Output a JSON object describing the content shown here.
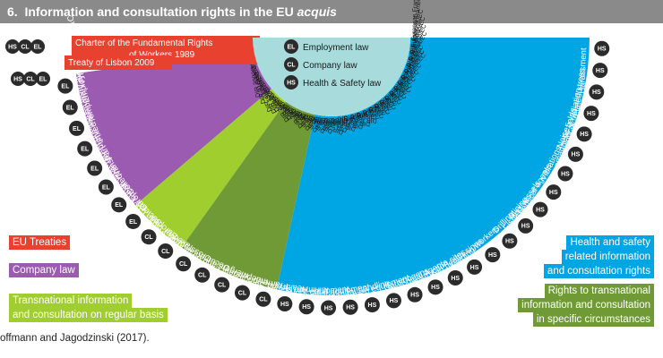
{
  "title": {
    "number": "6.",
    "text": "Information and consultation rights in the EU",
    "emphasis": "acquis"
  },
  "colors": {
    "eu_treaties": "#e8412f",
    "company_law": "#9b5bb0",
    "transnational": "#9fce2e",
    "rights_circumstances": "#6f9a35",
    "health_safety": "#00a5e3",
    "center": "#a8dcdc",
    "circle": "#2b2b2b"
  },
  "center_legend": [
    {
      "code": "EL",
      "label": "Employment law"
    },
    {
      "code": "CL",
      "label": "Company law"
    },
    {
      "code": "HS",
      "label": "Health & Safety law"
    }
  ],
  "left_legend": [
    {
      "label": "EU Treaties",
      "color_key": "eu_treaties"
    },
    {
      "label": "Company law",
      "color_key": "company_law"
    },
    {
      "label": "Transnational information",
      "color_key": "transnational"
    },
    {
      "label": "and consultation on regular basis",
      "color_key": "transnational"
    }
  ],
  "right_legend": [
    {
      "label": "Health and safety",
      "color_key": "health_safety"
    },
    {
      "label": "related information",
      "color_key": "health_safety"
    },
    {
      "label": "and consultation rights",
      "color_key": "health_safety"
    },
    {
      "label": "Rights to transnational",
      "color_key": "rights_circumstances"
    },
    {
      "label": "information  and consultation",
      "color_key": "rights_circumstances"
    },
    {
      "label": "in specific circumstances",
      "color_key": "rights_circumstances"
    }
  ],
  "treaties": [
    {
      "line1": "Charter of the Fundamental Rights",
      "line2": "of Workers 1989",
      "badges": [
        "HS",
        "CL",
        "EL"
      ]
    },
    {
      "line1": "Treaty of Lisbon 2009",
      "line2": "",
      "badges": [
        "HS",
        "CL",
        "EL"
      ]
    }
  ],
  "rays": [
    {
      "label": "Framework of I&C",
      "code": "DIR 2002/14/EC",
      "group": "company_law",
      "badge": "EL"
    },
    {
      "label": "Employment contract",
      "code": "DIR 91/533/EEC",
      "group": "company_law",
      "badge": "EL"
    },
    {
      "label": "Temporary agency work",
      "code": "DIR 2008/104/EC",
      "group": "company_law",
      "badge": "EL"
    },
    {
      "label": "Fixed-term work",
      "code": "DIR 1999/70/EC",
      "group": "company_law",
      "badge": "EL"
    },
    {
      "label": "Part-time work",
      "code": "DIR 97/81/EC",
      "group": "company_law",
      "badge": "EL"
    },
    {
      "label": "Transfer of undertakings",
      "code": "DIR 2001/23/EC",
      "group": "company_law",
      "badge": "EL"
    },
    {
      "label": "Collective redundancies",
      "code": "DIR 98/59/EC",
      "group": "company_law",
      "badge": "EL"
    },
    {
      "label": "European Works Councils",
      "code": "DIR 2009/38/EC",
      "group": "transnational",
      "badge": "EL"
    },
    {
      "label": "Societas Europaea (SE)",
      "code": "DIR 2001/86/EC",
      "group": "transnational",
      "badge": "CL"
    },
    {
      "label": "European Cooperative Society",
      "code": "DIR 2003/72/EC",
      "group": "transnational",
      "badge": "CL"
    },
    {
      "label": "Takeover bids",
      "code": "DIR 2004/25/EC",
      "group": "rights_circumstances",
      "badge": "CL"
    },
    {
      "label": "Cross-border mergers",
      "code": "DIR 2005/56/EC",
      "group": "rights_circumstances",
      "badge": "CL"
    },
    {
      "label": "Documentation rights in",
      "code": "DIR 2009/101/EC",
      "group": "rights_circumstances",
      "badge": "CL"
    },
    {
      "label": "mergers and divisions",
      "code": "DIR 2011/35/EU",
      "group": "rights_circumstances",
      "badge": "CL"
    },
    {
      "label": "Independent expert's report",
      "code": "DIR 82/891/EEC",
      "group": "rights_circumstances",
      "badge": "CL"
    },
    {
      "label": "Framework for",
      "code": "DIR 89/391/EEC",
      "group": "health_safety",
      "badge": "HS"
    },
    {
      "label": "Health and Safety",
      "code": "DIR 89/391/EEC",
      "group": "health_safety",
      "badge": "HS"
    },
    {
      "label": "Minimum standards",
      "code": "DIR 89/654/EEC",
      "group": "health_safety",
      "badge": "HS"
    },
    {
      "label": "Work equipment",
      "code": "DIR 89/655/EEC",
      "group": "health_safety",
      "badge": "HS"
    },
    {
      "label": "Personal protective equipment",
      "code": "DIR 89/656/EEC",
      "group": "health_safety",
      "badge": "HS"
    },
    {
      "label": "Manual handling",
      "code": "DIR 90/269/EEC",
      "group": "health_safety",
      "badge": "HS"
    },
    {
      "label": "Display screen equipment",
      "code": "DIR 90/270/EEC",
      "group": "health_safety",
      "badge": "HS"
    },
    {
      "label": "Carcinogens",
      "code": "DIR 90/394/EEC",
      "group": "health_safety",
      "badge": "HS"
    },
    {
      "label": "Biological agents",
      "code": "DIR 90/679/EEC",
      "group": "health_safety",
      "badge": "HS"
    },
    {
      "label": "Mobile construction sites",
      "code": "DIR 92/57/EEC",
      "group": "health_safety",
      "badge": "HS"
    },
    {
      "label": "Safety and health signs",
      "code": "DIR 92/58/EEC",
      "group": "health_safety",
      "badge": "HS"
    },
    {
      "label": "Pregnant and breast-feeding workers",
      "code": "DIR 92/85/EEC",
      "group": "health_safety",
      "badge": "HS"
    },
    {
      "label": "Drilling",
      "code": "DIR 92/91/EEC",
      "group": "health_safety",
      "badge": "HS"
    },
    {
      "label": "Mining",
      "code": "DIR 92/104/EEC",
      "group": "health_safety",
      "badge": "HS"
    },
    {
      "label": "Fishing vessels",
      "code": "DIR 93/103/EC",
      "group": "health_safety",
      "badge": "HS"
    },
    {
      "label": "Chemical agents",
      "code": "DIR 98/24/EC",
      "group": "health_safety",
      "badge": "HS"
    },
    {
      "label": "Vibrations",
      "code": "DIR 2002/44/EC",
      "group": "health_safety",
      "badge": "HS"
    },
    {
      "label": "Noise",
      "code": "DIR 2003/10/EC",
      "group": "health_safety",
      "badge": "HS"
    },
    {
      "label": "Electromagnetic fields",
      "code": "DIR 2004/40/EC",
      "group": "health_safety",
      "badge": "HS"
    },
    {
      "label": "Artificial optical radiation",
      "code": "DIR 2006/25/EC",
      "group": "health_safety",
      "badge": "HS"
    },
    {
      "label": "Work-related stress",
      "code": "European Framework Agreement",
      "group": "health_safety",
      "badge": "HS"
    },
    {
      "label": "Harassment",
      "code": "European Framework Agreement",
      "group": "health_safety",
      "badge": "HS"
    }
  ],
  "source": "offmann and Jagodzinski (2017)."
}
